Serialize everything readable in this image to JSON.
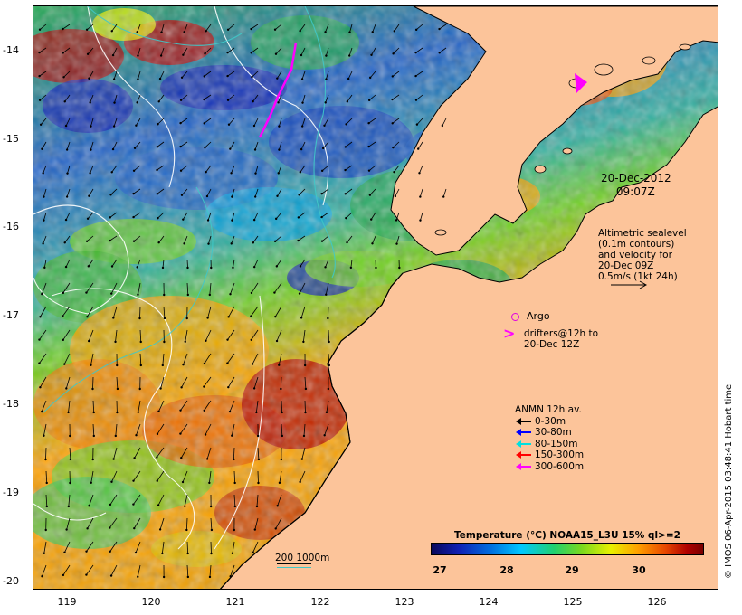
{
  "map": {
    "y_ticks": [
      "-14",
      "-15",
      "-16",
      "-17",
      "-18",
      "-19",
      "-20"
    ],
    "x_ticks": [
      "119",
      "120",
      "121",
      "122",
      "123",
      "124",
      "125",
      "126"
    ],
    "colors": {
      "land": "#fcc49a",
      "coast": "#000000",
      "sealevel_contour": "#ffffff",
      "isobath_200": "#ffffff",
      "isobath_1000": "#40c8c8",
      "argo": "#e000e0",
      "drifter": "#ff00ff"
    }
  },
  "annotations": {
    "date": "20-Dec-2012",
    "time": "09:07Z",
    "altimetry_lines": [
      "Altimetric sealevel",
      "(0.1m contours)",
      "and velocity for",
      "20-Dec 09Z",
      "0.5m/s (1kt 24h)"
    ],
    "argo_label": "Argo",
    "drifter_symbol": ">",
    "drifter_lines": [
      "drifters@12h to",
      "20-Dec 12Z"
    ]
  },
  "anmn": {
    "title": "ANMN 12h av.",
    "items": [
      {
        "label": "0-30m",
        "color": "#000000"
      },
      {
        "label": "30-80m",
        "color": "#0000ff"
      },
      {
        "label": "80-150m",
        "color": "#00e0e0"
      },
      {
        "label": "150-300m",
        "color": "#ff0000"
      },
      {
        "label": "300-600m",
        "color": "#ff00ff"
      }
    ]
  },
  "colorbar": {
    "title": "Temperature (°C) NOAA15_L3U 15% ql>=2",
    "ticks": [
      "27",
      "28",
      "29",
      "30"
    ]
  },
  "scale": {
    "label": "200 1000m"
  },
  "credit": "© IMOS 06-Apr-2015 03:48:41 Hobart time"
}
